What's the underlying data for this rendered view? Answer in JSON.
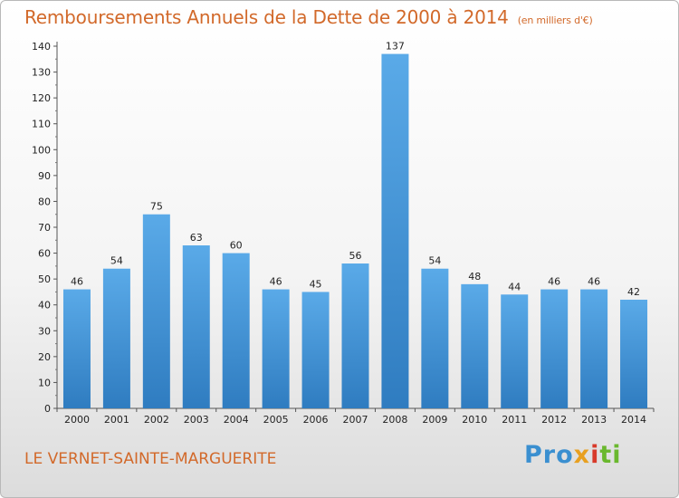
{
  "chart_data": {
    "type": "bar",
    "title": "Remboursements Annuels de la Dette de 2000 à 2014",
    "unit": "(en milliers d'€)",
    "categories": [
      "2000",
      "2001",
      "2002",
      "2003",
      "2004",
      "2005",
      "2006",
      "2007",
      "2008",
      "2009",
      "2010",
      "2011",
      "2012",
      "2013",
      "2014"
    ],
    "values": [
      46,
      54,
      75,
      63,
      60,
      46,
      45,
      56,
      137,
      54,
      48,
      44,
      46,
      46,
      42
    ],
    "ylim": [
      0,
      140
    ],
    "yticks": [
      0,
      10,
      20,
      30,
      40,
      50,
      60,
      70,
      80,
      90,
      100,
      110,
      120,
      130,
      140
    ],
    "grid": false,
    "bar_color_top": "#5aaae8",
    "bar_color_bottom": "#2f7cc0"
  },
  "footer": {
    "commune": "LE VERNET-SAINTE-MARGUERITE",
    "logo": [
      "Pro",
      "x",
      "i",
      "ti"
    ]
  }
}
